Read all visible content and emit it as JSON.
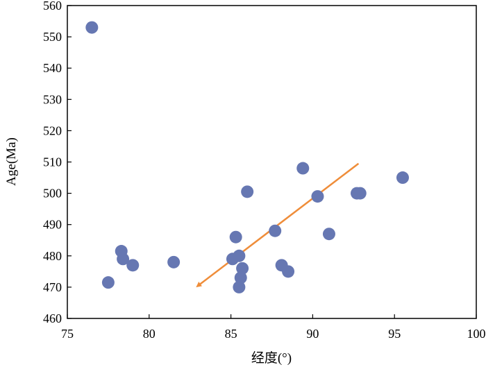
{
  "chart_data": {
    "type": "scatter",
    "title": "",
    "xlabel": "经度(°)",
    "ylabel": "Age(Ma)",
    "xlim": [
      75,
      100
    ],
    "ylim": [
      460,
      560
    ],
    "xticks": [
      "75",
      "80",
      "85",
      "90",
      "95",
      "100"
    ],
    "yticks": [
      "460",
      "470",
      "480",
      "490",
      "500",
      "510",
      "520",
      "530",
      "540",
      "550",
      "560"
    ],
    "grid": false,
    "legend": "none",
    "marker_color": "#6677b2",
    "arrow_color": "#ef8d3a",
    "series": [
      {
        "points": [
          {
            "x": 76.5,
            "y": 553
          },
          {
            "x": 77.5,
            "y": 471.5
          },
          {
            "x": 78.3,
            "y": 481.5
          },
          {
            "x": 78.4,
            "y": 479
          },
          {
            "x": 79.0,
            "y": 477
          },
          {
            "x": 81.5,
            "y": 478
          },
          {
            "x": 85.1,
            "y": 479
          },
          {
            "x": 85.3,
            "y": 486
          },
          {
            "x": 85.5,
            "y": 480
          },
          {
            "x": 85.7,
            "y": 476
          },
          {
            "x": 85.6,
            "y": 473
          },
          {
            "x": 85.5,
            "y": 470
          },
          {
            "x": 86.0,
            "y": 500.5
          },
          {
            "x": 87.7,
            "y": 488
          },
          {
            "x": 88.1,
            "y": 477
          },
          {
            "x": 88.5,
            "y": 475
          },
          {
            "x": 89.4,
            "y": 508
          },
          {
            "x": 90.3,
            "y": 499
          },
          {
            "x": 91.0,
            "y": 487
          },
          {
            "x": 92.7,
            "y": 500
          },
          {
            "x": 92.9,
            "y": 500
          },
          {
            "x": 95.5,
            "y": 505
          }
        ]
      }
    ],
    "annotations": [
      {
        "type": "arrow",
        "from": {
          "x": 92.8,
          "y": 509.5
        },
        "to": {
          "x": 83.0,
          "y": 470.5
        }
      }
    ]
  }
}
